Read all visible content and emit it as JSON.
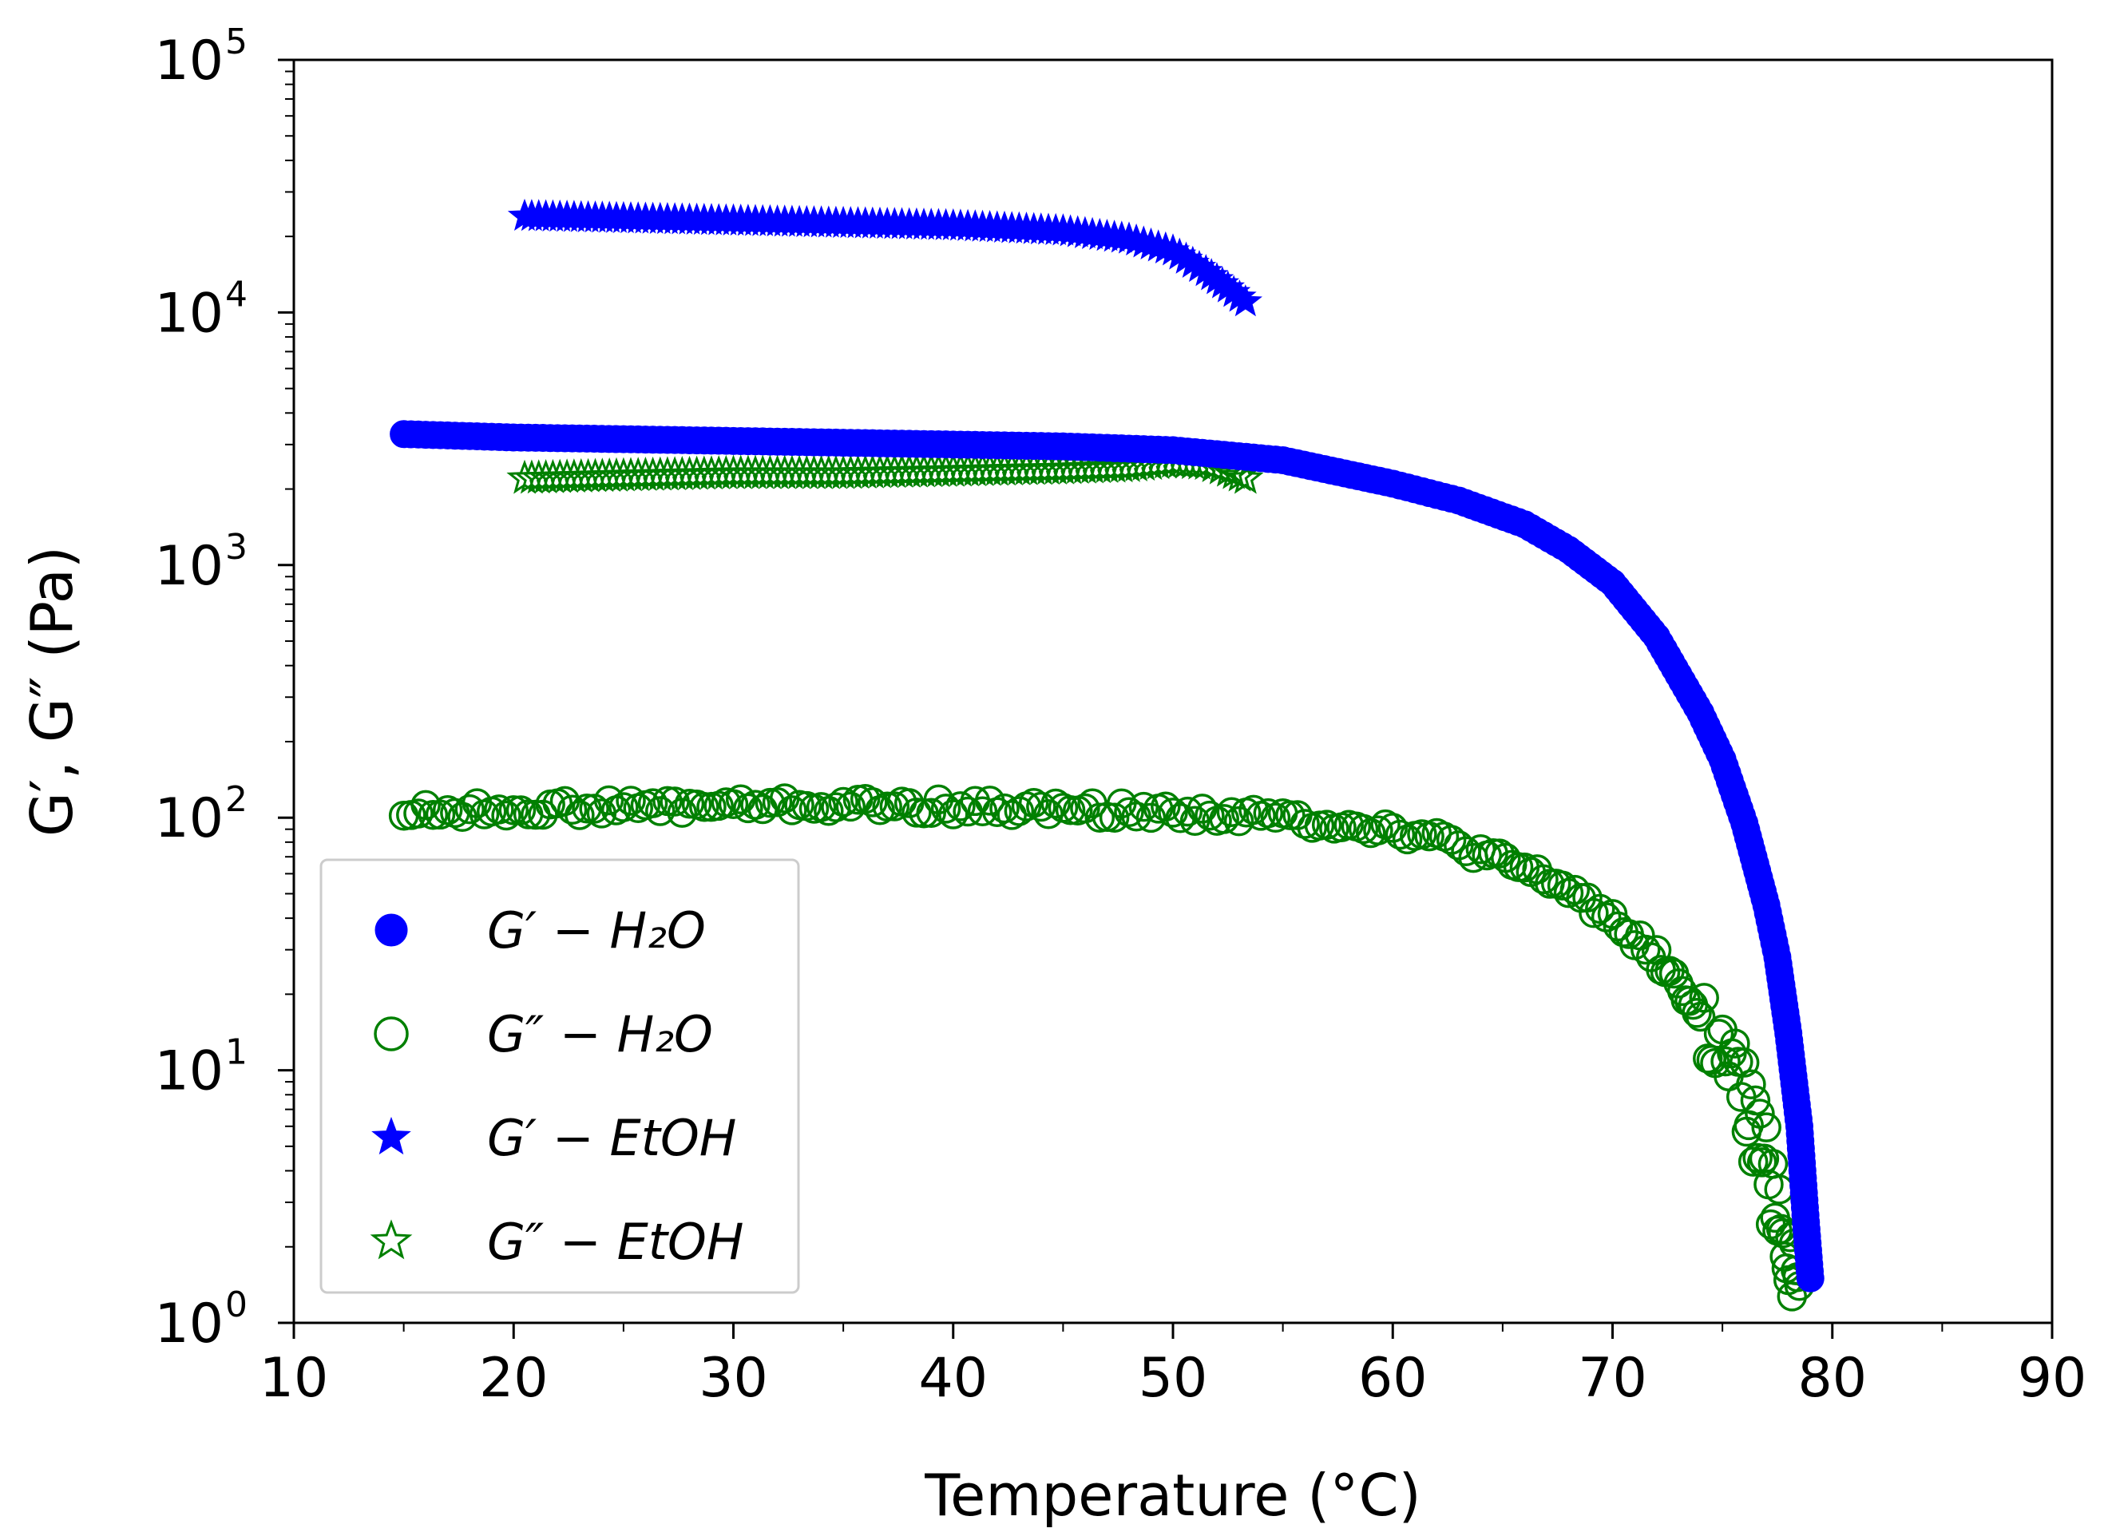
{
  "chart_data": {
    "type": "scatter",
    "xlabel": "Temperature (°C)",
    "ylabel": "G′,  G″ (Pa)",
    "x_lim": [
      10,
      90
    ],
    "y_lim": [
      1,
      100000
    ],
    "y_scale": "log",
    "x_ticks": [
      "10",
      "20",
      "30",
      "40",
      "50",
      "60",
      "70",
      "80",
      "90"
    ],
    "y_ticks": [
      {
        "base": "10",
        "exp": "0"
      },
      {
        "base": "10",
        "exp": "1"
      },
      {
        "base": "10",
        "exp": "2"
      },
      {
        "base": "10",
        "exp": "3"
      },
      {
        "base": "10",
        "exp": "4"
      },
      {
        "base": "10",
        "exp": "5"
      }
    ],
    "grid": false,
    "legend_position": "lower-left",
    "series": [
      {
        "name": "G′ − H₂O",
        "marker": "filled-circle",
        "color": "#0000ff",
        "x": [
          15,
          20,
          25,
          30,
          35,
          40,
          45,
          50,
          55,
          60,
          63,
          66,
          68,
          70,
          72,
          74,
          75,
          76,
          77,
          77.5,
          78,
          78.5,
          78.8,
          79
        ],
        "y": [
          3300,
          3200,
          3150,
          3100,
          3050,
          3000,
          2950,
          2850,
          2600,
          2100,
          1800,
          1450,
          1150,
          850,
          520,
          260,
          170,
          95,
          45,
          28,
          14,
          6,
          2.5,
          1.5
        ]
      },
      {
        "name": "G″ − H₂O",
        "marker": "open-circle",
        "color": "#008000",
        "x": [
          15,
          20,
          25,
          30,
          35,
          40,
          45,
          50,
          55,
          60,
          62,
          64,
          66,
          68,
          70,
          72,
          73,
          74,
          75,
          76,
          76.5,
          77,
          77.5,
          78,
          78.5
        ],
        "y": [
          105,
          108,
          110,
          112,
          112,
          110,
          108,
          105,
          100,
          90,
          82,
          72,
          62,
          52,
          40,
          28,
          22,
          16,
          11,
          7.5,
          5.5,
          4,
          3,
          2,
          1.4
        ]
      },
      {
        "name": "G′ − EtOH",
        "marker": "filled-star",
        "color": "#0000ff",
        "x": [
          20.5,
          25,
          30,
          35,
          40,
          45,
          48,
          50,
          51.5,
          52.5,
          53.3
        ],
        "y": [
          24000,
          23500,
          23000,
          22500,
          22000,
          21000,
          19500,
          17500,
          14500,
          12500,
          11000
        ]
      },
      {
        "name": "G″ − EtOH",
        "marker": "open-star",
        "color": "#008000",
        "x": [
          20.5,
          25,
          30,
          35,
          40,
          45,
          48,
          50,
          51.5,
          52.5,
          53.3
        ],
        "y": [
          2200,
          2250,
          2300,
          2300,
          2350,
          2400,
          2450,
          2550,
          2500,
          2350,
          2200
        ]
      }
    ]
  }
}
